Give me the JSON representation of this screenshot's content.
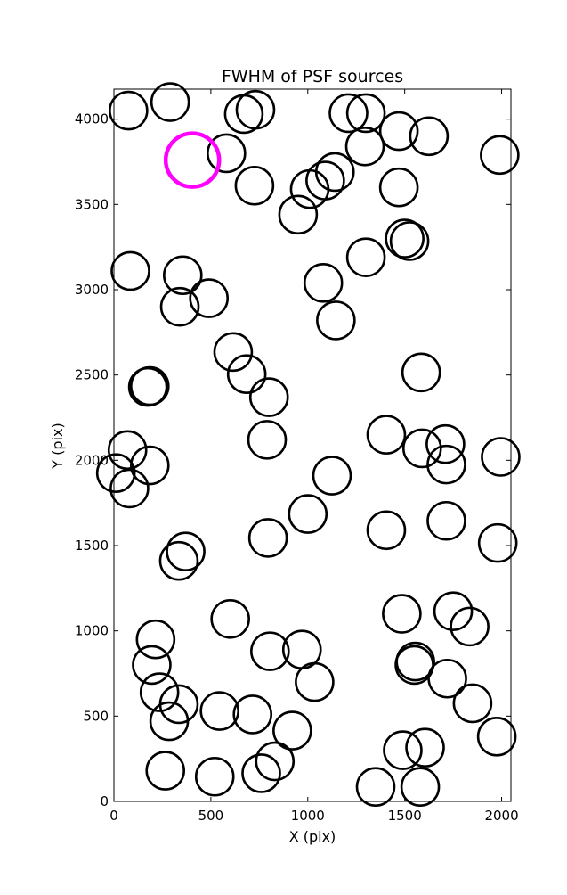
{
  "chart_data": {
    "type": "scatter",
    "title": "FWHM of PSF sources",
    "xlabel": "X (pix)",
    "ylabel": "Y (pix)",
    "xlim": [
      0,
      2048
    ],
    "ylim": [
      0,
      4176
    ],
    "xticks": [
      0,
      500,
      1000,
      1500,
      2000
    ],
    "yticks": [
      0,
      500,
      1000,
      1500,
      2000,
      2500,
      3000,
      3500,
      4000
    ],
    "grid": false,
    "marker": "open-circle",
    "colors": {
      "default": "#000000",
      "highlight": "#ff00ff"
    },
    "series": [
      {
        "points": [
          {
            "x": 75,
            "y": 4050
          },
          {
            "x": 290,
            "y": 4100
          },
          {
            "x": 580,
            "y": 3800
          },
          {
            "x": 670,
            "y": 4030
          },
          {
            "x": 730,
            "y": 4055
          },
          {
            "x": 725,
            "y": 3610
          },
          {
            "x": 950,
            "y": 3440
          },
          {
            "x": 1010,
            "y": 3590
          },
          {
            "x": 1090,
            "y": 3640
          },
          {
            "x": 1140,
            "y": 3690
          },
          {
            "x": 1210,
            "y": 4035
          },
          {
            "x": 1300,
            "y": 4035
          },
          {
            "x": 1295,
            "y": 3840
          },
          {
            "x": 1470,
            "y": 3930
          },
          {
            "x": 1625,
            "y": 3900
          },
          {
            "x": 1990,
            "y": 3790
          },
          {
            "x": 1470,
            "y": 3600
          },
          {
            "x": 1500,
            "y": 3300
          },
          {
            "x": 1525,
            "y": 3285
          },
          {
            "x": 1300,
            "y": 3190
          },
          {
            "x": 1080,
            "y": 3040
          },
          {
            "x": 1145,
            "y": 2820
          },
          {
            "x": 85,
            "y": 3110
          },
          {
            "x": 355,
            "y": 3085
          },
          {
            "x": 340,
            "y": 2900
          },
          {
            "x": 490,
            "y": 2950
          },
          {
            "x": 615,
            "y": 2635
          },
          {
            "x": 685,
            "y": 2505
          },
          {
            "x": 800,
            "y": 2370
          },
          {
            "x": 175,
            "y": 2430
          },
          {
            "x": 185,
            "y": 2435
          },
          {
            "x": 790,
            "y": 2120
          },
          {
            "x": 1585,
            "y": 2515
          },
          {
            "x": 1405,
            "y": 2150
          },
          {
            "x": 1590,
            "y": 2070
          },
          {
            "x": 1710,
            "y": 2095
          },
          {
            "x": 1715,
            "y": 1975
          },
          {
            "x": 1995,
            "y": 2020
          },
          {
            "x": 70,
            "y": 2060
          },
          {
            "x": 10,
            "y": 1925
          },
          {
            "x": 185,
            "y": 1970
          },
          {
            "x": 80,
            "y": 1835
          },
          {
            "x": 1125,
            "y": 1910
          },
          {
            "x": 1000,
            "y": 1685
          },
          {
            "x": 1405,
            "y": 1590
          },
          {
            "x": 1715,
            "y": 1645
          },
          {
            "x": 1980,
            "y": 1515
          },
          {
            "x": 795,
            "y": 1545
          },
          {
            "x": 370,
            "y": 1465
          },
          {
            "x": 335,
            "y": 1410
          },
          {
            "x": 600,
            "y": 1070
          },
          {
            "x": 1485,
            "y": 1100
          },
          {
            "x": 1750,
            "y": 1115
          },
          {
            "x": 1835,
            "y": 1025
          },
          {
            "x": 215,
            "y": 950
          },
          {
            "x": 195,
            "y": 800
          },
          {
            "x": 805,
            "y": 880
          },
          {
            "x": 970,
            "y": 890
          },
          {
            "x": 1035,
            "y": 700
          },
          {
            "x": 1555,
            "y": 820
          },
          {
            "x": 1550,
            "y": 800
          },
          {
            "x": 1720,
            "y": 720
          },
          {
            "x": 235,
            "y": 640
          },
          {
            "x": 335,
            "y": 570
          },
          {
            "x": 285,
            "y": 470
          },
          {
            "x": 545,
            "y": 530
          },
          {
            "x": 715,
            "y": 510
          },
          {
            "x": 920,
            "y": 415
          },
          {
            "x": 1850,
            "y": 575
          },
          {
            "x": 1975,
            "y": 380
          },
          {
            "x": 1490,
            "y": 300
          },
          {
            "x": 1605,
            "y": 315
          },
          {
            "x": 830,
            "y": 235
          },
          {
            "x": 760,
            "y": 165
          },
          {
            "x": 520,
            "y": 145
          },
          {
            "x": 265,
            "y": 180
          },
          {
            "x": 1350,
            "y": 85
          },
          {
            "x": 1580,
            "y": 85
          }
        ]
      },
      {
        "highlight": true,
        "points": [
          {
            "x": 405,
            "y": 3760
          }
        ]
      }
    ]
  }
}
